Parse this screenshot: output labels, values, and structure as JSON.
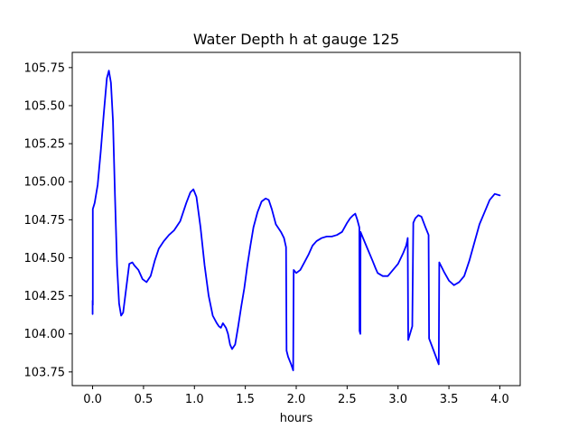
{
  "chart_data": {
    "type": "line",
    "title": "Water Depth h at gauge 125",
    "xlabel": "hours",
    "ylabel": "",
    "xlim": [
      -0.2,
      4.2
    ],
    "ylim": [
      103.66,
      105.85
    ],
    "xticks": [
      0.0,
      0.5,
      1.0,
      1.5,
      2.0,
      2.5,
      3.0,
      3.5,
      4.0
    ],
    "xtick_labels": [
      "0.0",
      "0.5",
      "1.0",
      "1.5",
      "2.0",
      "2.5",
      "3.0",
      "3.5",
      "4.0"
    ],
    "yticks": [
      103.75,
      104.0,
      104.25,
      104.5,
      104.75,
      105.0,
      105.25,
      105.5,
      105.75
    ],
    "ytick_labels": [
      "103.75",
      "104.00",
      "104.25",
      "104.50",
      "104.75",
      "105.00",
      "105.25",
      "105.50",
      "105.75"
    ],
    "grid": false,
    "series": [
      {
        "color": "#0000ff",
        "x": [
          0.0,
          0.0,
          0.002,
          0.002,
          0.02,
          0.05,
          0.08,
          0.11,
          0.14,
          0.16,
          0.18,
          0.2,
          0.22,
          0.24,
          0.26,
          0.28,
          0.3,
          0.33,
          0.36,
          0.39,
          0.41,
          0.45,
          0.49,
          0.53,
          0.57,
          0.61,
          0.65,
          0.7,
          0.75,
          0.8,
          0.86,
          0.92,
          0.96,
          0.99,
          1.02,
          1.06,
          1.1,
          1.14,
          1.18,
          1.22,
          1.24,
          1.26,
          1.28,
          1.31,
          1.33,
          1.35,
          1.37,
          1.4,
          1.43,
          1.46,
          1.49,
          1.5,
          1.52,
          1.55,
          1.58,
          1.62,
          1.66,
          1.7,
          1.73,
          1.76,
          1.8,
          1.85,
          1.88,
          1.9,
          1.905,
          1.92,
          1.95,
          1.97,
          1.975,
          2.0,
          2.04,
          2.08,
          2.12,
          2.16,
          2.2,
          2.25,
          2.3,
          2.35,
          2.4,
          2.45,
          2.5,
          2.53,
          2.56,
          2.58,
          2.6,
          2.62,
          2.622,
          2.63,
          2.632,
          2.65,
          2.7,
          2.75,
          2.78,
          2.8,
          2.85,
          2.9,
          2.95,
          3.0,
          3.05,
          3.08,
          3.09,
          3.095,
          3.1,
          3.14,
          3.15,
          3.17,
          3.2,
          3.23,
          3.27,
          3.3,
          3.305,
          3.35,
          3.4,
          3.405,
          3.45,
          3.5,
          3.55,
          3.6,
          3.65,
          3.7,
          3.75,
          3.8,
          3.85,
          3.9,
          3.95,
          4.0
        ],
        "values": [
          104.13,
          104.22,
          104.19,
          104.82,
          104.86,
          104.98,
          105.2,
          105.45,
          105.68,
          105.73,
          105.65,
          105.4,
          104.9,
          104.45,
          104.2,
          104.12,
          104.14,
          104.3,
          104.46,
          104.47,
          104.45,
          104.42,
          104.36,
          104.34,
          104.38,
          104.48,
          104.56,
          104.61,
          104.65,
          104.68,
          104.74,
          104.86,
          104.93,
          104.95,
          104.9,
          104.7,
          104.45,
          104.25,
          104.12,
          104.07,
          104.05,
          104.04,
          104.07,
          104.04,
          104.0,
          103.93,
          103.9,
          103.93,
          104.05,
          104.18,
          104.3,
          104.35,
          104.45,
          104.58,
          104.7,
          104.8,
          104.87,
          104.89,
          104.88,
          104.82,
          104.72,
          104.67,
          104.63,
          104.57,
          103.89,
          103.85,
          103.8,
          103.76,
          104.42,
          104.4,
          104.42,
          104.47,
          104.52,
          104.58,
          104.61,
          104.63,
          104.64,
          104.64,
          104.65,
          104.67,
          104.73,
          104.76,
          104.78,
          104.79,
          104.75,
          104.7,
          104.02,
          104.0,
          104.67,
          104.64,
          104.56,
          104.48,
          104.43,
          104.4,
          104.38,
          104.38,
          104.42,
          104.46,
          104.53,
          104.58,
          104.61,
          104.63,
          103.96,
          104.05,
          104.73,
          104.76,
          104.78,
          104.77,
          104.7,
          104.65,
          103.97,
          103.89,
          103.8,
          104.47,
          104.41,
          104.35,
          104.32,
          104.34,
          104.38,
          104.48,
          104.6,
          104.72,
          104.8,
          104.88,
          104.92,
          104.91
        ]
      }
    ]
  }
}
